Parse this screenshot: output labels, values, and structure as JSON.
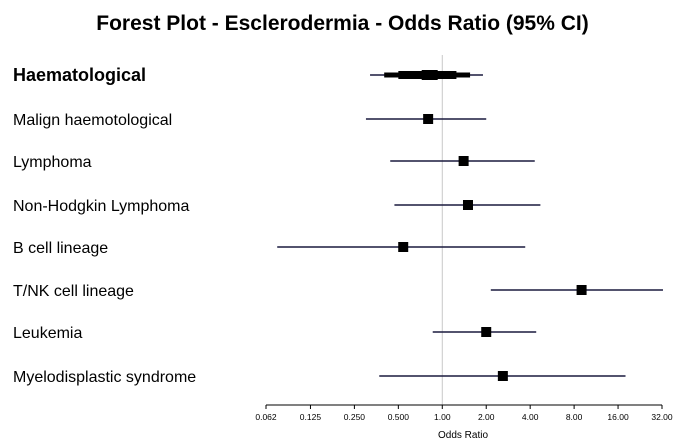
{
  "chart_data": {
    "type": "forest",
    "title": "Forest Plot - Esclerodermia - Odds Ratio (95% CI)",
    "xlabel": "Odds Ratio",
    "x_scale": "log2",
    "xlim": [
      0.062,
      32.0
    ],
    "reference_line": 1.0,
    "x_ticks": [
      {
        "value": 0.062,
        "label": "0.062"
      },
      {
        "value": 0.125,
        "label": "0.125"
      },
      {
        "value": 0.25,
        "label": "0.250"
      },
      {
        "value": 0.5,
        "label": "0.500"
      },
      {
        "value": 1.0,
        "label": "1.00"
      },
      {
        "value": 2.0,
        "label": "2.00"
      },
      {
        "value": 4.0,
        "label": "4.00"
      },
      {
        "value": 8.0,
        "label": "8.00"
      },
      {
        "value": 16.0,
        "label": "16.00"
      },
      {
        "value": 32.0,
        "label": "32.00"
      }
    ],
    "rows": [
      {
        "label": "Haematological",
        "or": 0.82,
        "lower": 0.32,
        "upper": 1.9,
        "summary": true
      },
      {
        "label": "Malign haemotological",
        "or": 0.8,
        "lower": 0.3,
        "upper": 2.0,
        "summary": false
      },
      {
        "label": "Lymphoma",
        "or": 1.4,
        "lower": 0.44,
        "upper": 4.3,
        "summary": false
      },
      {
        "label": "Non-Hodgkin Lymphoma",
        "or": 1.5,
        "lower": 0.47,
        "upper": 4.7,
        "summary": false
      },
      {
        "label": "B cell lineage",
        "or": 0.54,
        "lower": 0.074,
        "upper": 3.7,
        "summary": false
      },
      {
        "label": "T/NK cell lineage",
        "or": 9.0,
        "lower": 2.15,
        "upper": 32.5,
        "summary": false
      },
      {
        "label": "Leukemia",
        "or": 2.0,
        "lower": 0.86,
        "upper": 4.4,
        "summary": false
      },
      {
        "label": "Myelodisplastic syndrome",
        "or": 2.6,
        "lower": 0.37,
        "upper": 18.0,
        "summary": false
      }
    ]
  },
  "colors": {
    "text": "#000000",
    "ci_line": "#1a1a3e",
    "reference_line": "#c8c8c8",
    "marker": "#000000"
  }
}
